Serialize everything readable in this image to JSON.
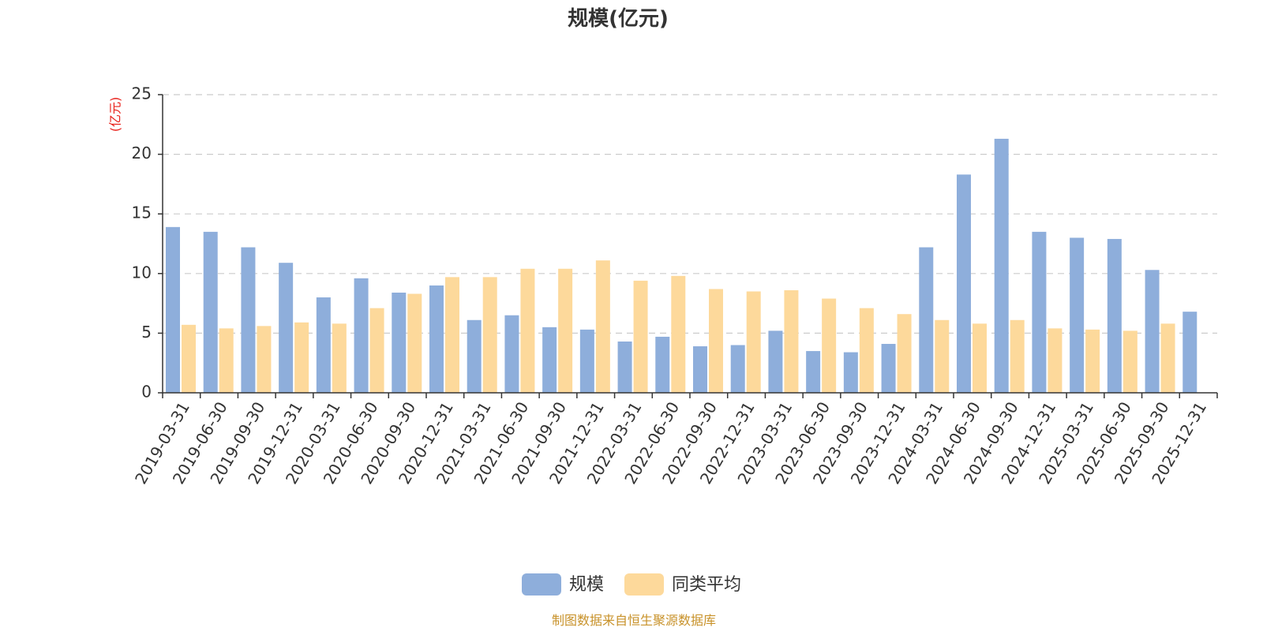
{
  "chart_data": {
    "type": "bar",
    "title": "规模(亿元)",
    "ylabel": "(亿元)",
    "ylim": [
      0,
      25
    ],
    "yticks": [
      0,
      5,
      10,
      15,
      20,
      25
    ],
    "grid": true,
    "legend_position": "bottom",
    "categories": [
      "2019-03-31",
      "2019-06-30",
      "2019-09-30",
      "2019-12-31",
      "2020-03-31",
      "2020-06-30",
      "2020-09-30",
      "2020-12-31",
      "2021-03-31",
      "2021-06-30",
      "2021-09-30",
      "2021-12-31",
      "2022-03-31",
      "2022-06-30",
      "2022-09-30",
      "2022-12-31",
      "2023-03-31",
      "2023-06-30",
      "2023-09-30",
      "2023-12-31",
      "2024-03-31",
      "2024-06-30",
      "2024-09-30",
      "2024-12-31",
      "2025-03-31",
      "2025-06-30",
      "2025-09-30",
      "2025-12-31"
    ],
    "series": [
      {
        "name": "规模",
        "color": "#8eaedb",
        "values": [
          13.9,
          13.5,
          12.2,
          10.9,
          8.0,
          9.6,
          8.4,
          9.0,
          6.1,
          6.5,
          5.5,
          5.3,
          4.3,
          4.7,
          3.9,
          4.0,
          5.2,
          3.5,
          3.4,
          4.1,
          12.2,
          18.3,
          21.3,
          13.5,
          13.0,
          12.9,
          10.3,
          6.8
        ]
      },
      {
        "name": "同类平均",
        "color": "#fdd99b",
        "values": [
          5.7,
          5.4,
          5.6,
          5.9,
          5.8,
          7.1,
          8.3,
          9.7,
          9.7,
          10.4,
          10.4,
          11.1,
          9.4,
          9.8,
          8.7,
          8.5,
          8.6,
          7.9,
          7.1,
          6.6,
          6.1,
          5.8,
          6.1,
          5.4,
          5.3,
          5.2,
          5.8,
          null
        ]
      }
    ]
  },
  "source_text": "制图数据来自恒生聚源数据库"
}
